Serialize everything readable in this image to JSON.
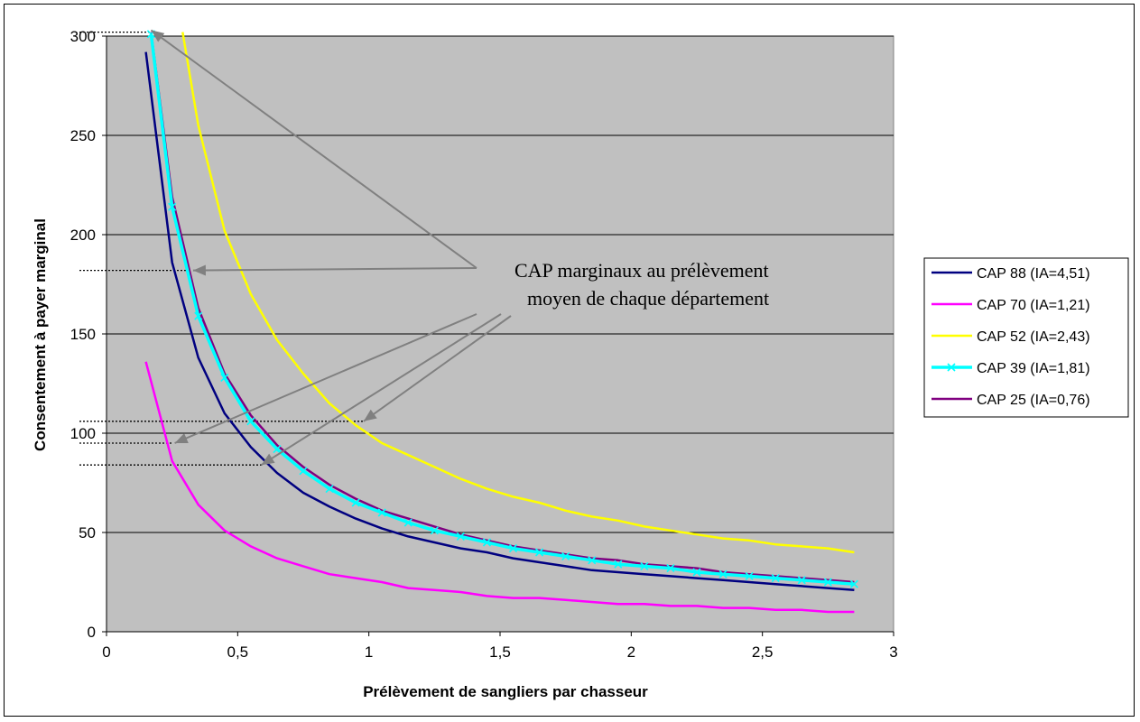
{
  "chart_data": {
    "type": "line",
    "title": "",
    "xlabel": "Prélèvement de sangliers par chasseur",
    "ylabel": "Consentement à payer marginal",
    "xlim": [
      0,
      3
    ],
    "ylim": [
      0,
      300
    ],
    "x_ticks": [
      "0",
      "0,5",
      "1",
      "1,5",
      "2",
      "2,5",
      "3"
    ],
    "y_ticks": [
      "0",
      "50",
      "100",
      "150",
      "200",
      "250",
      "300"
    ],
    "grid": "horizontal",
    "legend_position": "right",
    "annotation": [
      "CAP marginaux au prélèvement",
      "moyen de chaque département"
    ],
    "series": [
      {
        "name": "CAP 88 (IA=4,51)",
        "color": "#000080",
        "marker": "none",
        "x": [
          0.15,
          0.25,
          0.35,
          0.45,
          0.55,
          0.65,
          0.75,
          0.85,
          0.95,
          1.05,
          1.15,
          1.25,
          1.35,
          1.45,
          1.55,
          1.65,
          1.75,
          1.85,
          1.95,
          2.05,
          2.15,
          2.25,
          2.35,
          2.45,
          2.55,
          2.65,
          2.75,
          2.85
        ],
        "y": [
          292,
          186,
          138,
          110,
          93,
          80,
          70,
          63,
          57,
          52,
          48,
          45,
          42,
          40,
          37,
          35,
          33,
          31,
          30,
          29,
          28,
          27,
          26,
          25,
          24,
          23,
          22,
          21
        ]
      },
      {
        "name": "CAP 70 (IA=1,21)",
        "color": "#ff00ff",
        "marker": "none",
        "x": [
          0.15,
          0.25,
          0.35,
          0.45,
          0.55,
          0.65,
          0.75,
          0.85,
          0.95,
          1.05,
          1.15,
          1.25,
          1.35,
          1.45,
          1.55,
          1.65,
          1.75,
          1.85,
          1.95,
          2.05,
          2.15,
          2.25,
          2.35,
          2.45,
          2.55,
          2.65,
          2.75,
          2.85
        ],
        "y": [
          136,
          86,
          64,
          51,
          43,
          37,
          33,
          29,
          27,
          25,
          22,
          21,
          20,
          18,
          17,
          17,
          16,
          15,
          14,
          14,
          13,
          13,
          12,
          12,
          11,
          11,
          10,
          10
        ]
      },
      {
        "name": "CAP 52 (IA=2,43)",
        "color": "#ffff00",
        "marker": "none",
        "x": [
          0.29,
          0.35,
          0.45,
          0.55,
          0.65,
          0.75,
          0.85,
          0.95,
          1.05,
          1.15,
          1.25,
          1.35,
          1.45,
          1.55,
          1.65,
          1.75,
          1.85,
          1.95,
          2.05,
          2.15,
          2.25,
          2.35,
          2.45,
          2.55,
          2.65,
          2.75,
          2.85
        ],
        "y": [
          302,
          255,
          202,
          170,
          147,
          130,
          115,
          104,
          95,
          89,
          83,
          77,
          72,
          68,
          65,
          61,
          58,
          56,
          53,
          51,
          49,
          47,
          46,
          44,
          43,
          42,
          40
        ]
      },
      {
        "name": "CAP 39 (IA=1,81)",
        "color": "#00ffff",
        "marker": "x",
        "x": [
          0.17,
          0.25,
          0.35,
          0.45,
          0.55,
          0.65,
          0.75,
          0.85,
          0.95,
          1.05,
          1.15,
          1.25,
          1.35,
          1.45,
          1.55,
          1.65,
          1.75,
          1.85,
          1.95,
          2.05,
          2.15,
          2.25,
          2.35,
          2.45,
          2.55,
          2.65,
          2.75,
          2.85
        ],
        "y": [
          301,
          214,
          159,
          128,
          106,
          92,
          81,
          72,
          65,
          60,
          55,
          51,
          48,
          45,
          42,
          40,
          38,
          36,
          34,
          33,
          32,
          30,
          29,
          28,
          27,
          26,
          25,
          24
        ]
      },
      {
        "name": "CAP 25 (IA=0,76)",
        "color": "#800080",
        "marker": "none",
        "x": [
          0.17,
          0.25,
          0.35,
          0.45,
          0.55,
          0.65,
          0.75,
          0.85,
          0.95,
          1.05,
          1.15,
          1.25,
          1.35,
          1.45,
          1.55,
          1.65,
          1.75,
          1.85,
          1.95,
          2.05,
          2.15,
          2.25,
          2.35,
          2.45,
          2.55,
          2.65,
          2.75,
          2.85
        ],
        "y": [
          302,
          219,
          163,
          130,
          109,
          94,
          83,
          74,
          67,
          61,
          57,
          53,
          49,
          46,
          43,
          41,
          39,
          37,
          36,
          34,
          33,
          32,
          30,
          29,
          28,
          27,
          26,
          25
        ]
      }
    ]
  }
}
